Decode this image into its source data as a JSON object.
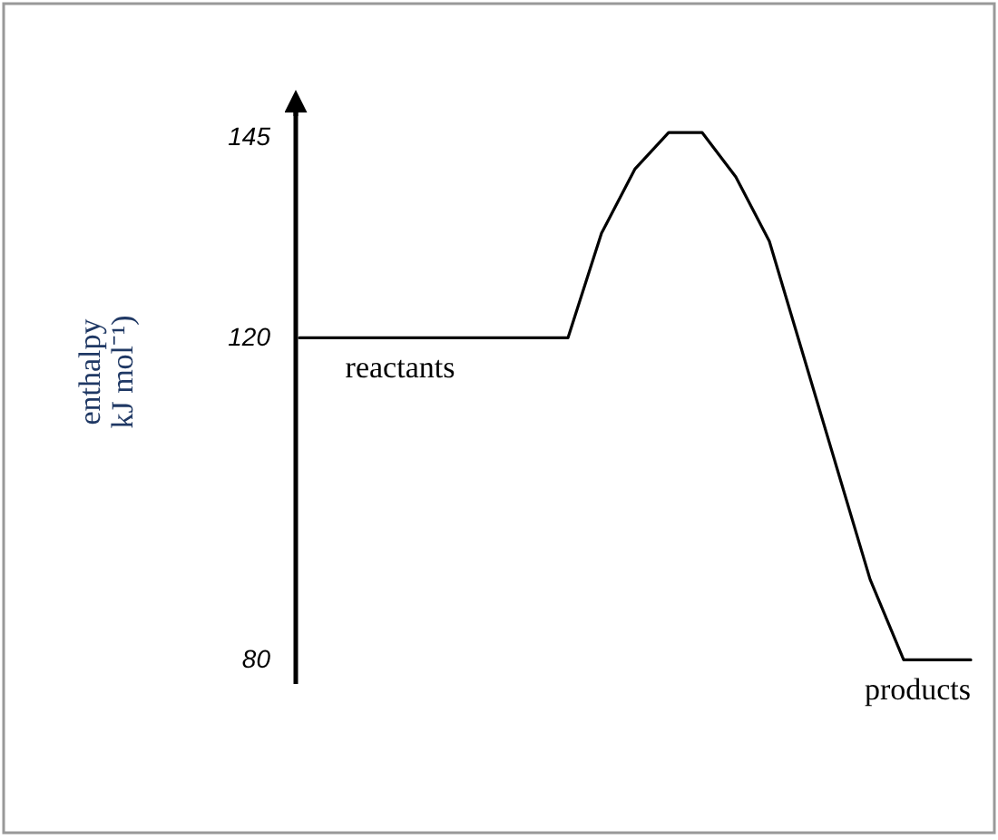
{
  "chart_data": {
    "type": "line",
    "ylabel": "enthalpy\nkJ mol⁻¹)",
    "categories": [
      null,
      null,
      null,
      null,
      null,
      null,
      null,
      null,
      null,
      null,
      null,
      null,
      null,
      null,
      null,
      null,
      null,
      null,
      null,
      null,
      null
    ],
    "series": [
      {
        "color": "#000000",
        "values": [
          120,
          120,
          120,
          120,
          120,
          120,
          120,
          120,
          120,
          133,
          141,
          145.5,
          145.5,
          140,
          132,
          118,
          104,
          90,
          80,
          80,
          80
        ]
      }
    ],
    "ylim": [
      77,
      148
    ],
    "yticks": [
      80,
      120,
      145
    ],
    "tick_labels": "y",
    "marker": "none",
    "line_style": "solid",
    "annotations": [
      "reactants",
      "products"
    ]
  }
}
